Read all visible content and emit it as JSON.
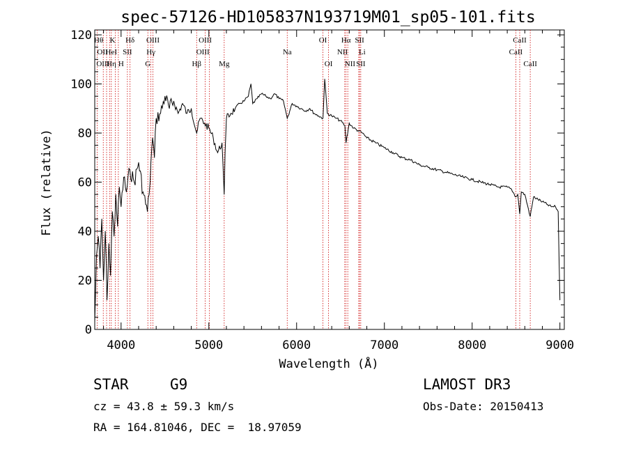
{
  "chart_data": {
    "type": "line",
    "title": "spec-57126-HD105837N193719M01_sp05-101.fits",
    "xlabel": "Wavelength (Å)",
    "ylabel": "Flux (relative)",
    "xlim": [
      3700,
      9050
    ],
    "ylim": [
      0,
      122
    ],
    "x_ticks": [
      4000,
      5000,
      6000,
      7000,
      8000,
      9000
    ],
    "x_tick_labels": [
      "4000",
      "5000",
      "6000",
      "7000",
      "8000",
      "9000"
    ],
    "y_ticks": [
      0,
      20,
      40,
      60,
      80,
      100,
      120
    ],
    "y_tick_labels": [
      "0",
      "20",
      "40",
      "60",
      "80",
      "100",
      "120"
    ],
    "series": [
      {
        "name": "flux",
        "x": [
          3700,
          3720,
          3740,
          3760,
          3780,
          3800,
          3820,
          3840,
          3860,
          3880,
          3900,
          3920,
          3940,
          3960,
          3980,
          4000,
          4030,
          4060,
          4100,
          4150,
          4200,
          4250,
          4300,
          4320,
          4340,
          4360,
          4380,
          4400,
          4450,
          4500,
          4550,
          4600,
          4650,
          4700,
          4750,
          4800,
          4861,
          4900,
          4950,
          5000,
          5050,
          5100,
          5150,
          5175,
          5185,
          5200,
          5250,
          5300,
          5350,
          5400,
          5450,
          5480,
          5500,
          5550,
          5600,
          5650,
          5700,
          5750,
          5800,
          5850,
          5893,
          5950,
          6000,
          6050,
          6100,
          6150,
          6200,
          6250,
          6300,
          6320,
          6350,
          6400,
          6450,
          6500,
          6550,
          6563,
          6600,
          6650,
          6700,
          6750,
          6800,
          6900,
          7000,
          7100,
          7200,
          7300,
          7400,
          7500,
          7600,
          7700,
          7800,
          7900,
          8000,
          8100,
          8200,
          8300,
          8400,
          8450,
          8498,
          8520,
          8542,
          8560,
          8600,
          8662,
          8700,
          8750,
          8800,
          8850,
          8900,
          8950,
          8980,
          9000
        ],
        "values": [
          3,
          30,
          38,
          25,
          45,
          20,
          40,
          12,
          35,
          22,
          48,
          38,
          55,
          42,
          58,
          50,
          62,
          56,
          65,
          60,
          68,
          56,
          48,
          55,
          68,
          78,
          70,
          86,
          88,
          95,
          90,
          93,
          88,
          92,
          88,
          90,
          80,
          86,
          84,
          82,
          78,
          72,
          76,
          55,
          72,
          86,
          88,
          90,
          92,
          93,
          95,
          100,
          92,
          94,
          96,
          95,
          94,
          96,
          94,
          93,
          86,
          92,
          91,
          90,
          89,
          90,
          88,
          87,
          86,
          102,
          88,
          87,
          86,
          85,
          83,
          76,
          84,
          82,
          81,
          80,
          78,
          76,
          74,
          72,
          70,
          69,
          67,
          66,
          65,
          64,
          63,
          62,
          61,
          60,
          59,
          58,
          58,
          57,
          54,
          55,
          47,
          56,
          55,
          46,
          54,
          53,
          52,
          51,
          50,
          50,
          48,
          12
        ]
      }
    ],
    "lines": [
      {
        "label": "Hθ",
        "x": 3797,
        "row": 0,
        "anchor": "end"
      },
      {
        "label": "K",
        "x": 3934,
        "row": 0,
        "anchor": "end"
      },
      {
        "label": "Hδ",
        "x": 4102,
        "row": 0,
        "anchor": "middle"
      },
      {
        "label": "OII",
        "x": 3727,
        "row": 1,
        "anchor": "start"
      },
      {
        "label": "HeI",
        "x": 3889,
        "row": 1,
        "anchor": "middle"
      },
      {
        "label": "SII",
        "x": 4072,
        "row": 1,
        "anchor": "middle"
      },
      {
        "label": "OIII",
        "x": 3869,
        "row": 2,
        "anchor": "end"
      },
      {
        "label": "Hη",
        "x": 3835,
        "row": 2,
        "anchor": "start"
      },
      {
        "label": "H",
        "x": 3969,
        "row": 2,
        "anchor": "start"
      },
      {
        "label": "OIII",
        "x": 4363,
        "row": 0,
        "anchor": "middle"
      },
      {
        "label": "Hγ",
        "x": 4340,
        "row": 1,
        "anchor": "middle"
      },
      {
        "label": "G",
        "x": 4305,
        "row": 2,
        "anchor": "middle"
      },
      {
        "label": "OIII",
        "x": 4959,
        "row": 0,
        "anchor": "middle"
      },
      {
        "label": "OIII",
        "x": 5007,
        "row": 1,
        "anchor": "end"
      },
      {
        "label": "Hβ",
        "x": 4861,
        "row": 2,
        "anchor": "middle"
      },
      {
        "label": "Mg",
        "x": 5175,
        "row": 2,
        "anchor": "middle"
      },
      {
        "label": "Na",
        "x": 5893,
        "row": 1,
        "anchor": "middle"
      },
      {
        "label": "OI",
        "x": 6300,
        "row": 0,
        "anchor": "middle"
      },
      {
        "label": "OI",
        "x": 6364,
        "row": 2,
        "anchor": "middle"
      },
      {
        "label": "Hα",
        "x": 6563,
        "row": 0,
        "anchor": "middle"
      },
      {
        "label": "NII",
        "x": 6583,
        "row": 1,
        "anchor": "end"
      },
      {
        "label": "NII",
        "x": 6548,
        "row": 2,
        "anchor": "start"
      },
      {
        "label": "SII",
        "x": 6717,
        "row": 0,
        "anchor": "middle"
      },
      {
        "label": "Li",
        "x": 6708,
        "row": 1,
        "anchor": "start"
      },
      {
        "label": "SII",
        "x": 6731,
        "row": 2,
        "anchor": "middle"
      },
      {
        "label": "CaII",
        "x": 8542,
        "row": 0,
        "anchor": "middle"
      },
      {
        "label": "CaII",
        "x": 8498,
        "row": 1,
        "anchor": "middle"
      },
      {
        "label": "CaII",
        "x": 8662,
        "row": 2,
        "anchor": "middle"
      }
    ]
  },
  "info": {
    "object_type": "STAR",
    "subclass": "G9",
    "survey": "LAMOST DR3",
    "cz": "cz = 43.8 ± 59.3 km/s",
    "obs_date": "Obs-Date: 20150413",
    "radec": "RA = 164.81046, DEC =  18.97059"
  }
}
